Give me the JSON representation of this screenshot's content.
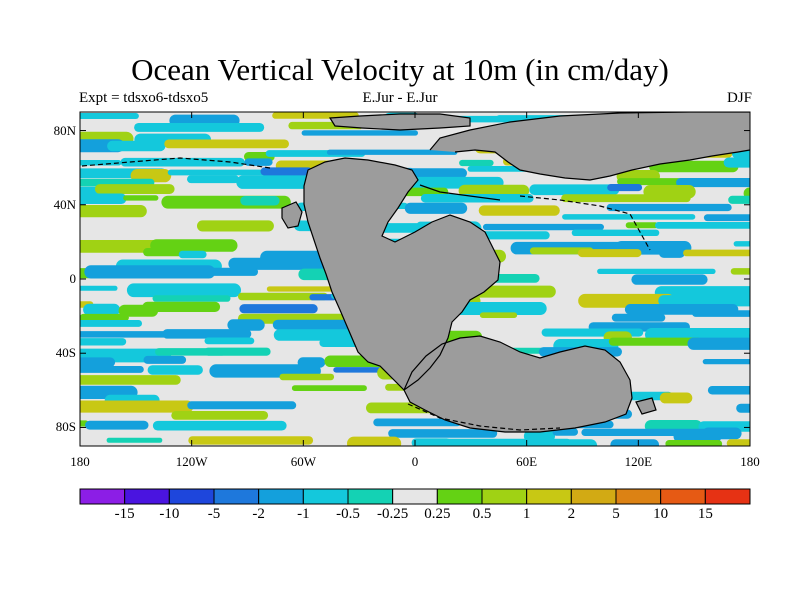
{
  "title": "Ocean Vertical Velocity at 10m (in cm/day)",
  "subtitle_left": "Expt = tdsxo6-tdsxo5",
  "subtitle_center": "E.Jur - E.Jur",
  "subtitle_right": "DJF",
  "map": {
    "ocean_base_color": "#e6e6e6",
    "land_color": "#9c9c9c",
    "lon_range": [
      -180,
      180
    ],
    "lat_range": [
      -90,
      90
    ],
    "lat_ticks": [
      {
        "label": "80N",
        "lat": 80
      },
      {
        "label": "40N",
        "lat": 40
      },
      {
        "label": "0",
        "lat": 0
      },
      {
        "label": "40S",
        "lat": -40
      },
      {
        "label": "80S",
        "lat": -80
      }
    ],
    "lon_ticks": [
      {
        "label": "180",
        "lon": -180
      },
      {
        "label": "120W",
        "lon": -120
      },
      {
        "label": "60W",
        "lon": -60
      },
      {
        "label": "0",
        "lon": 0
      },
      {
        "label": "60E",
        "lon": 60
      },
      {
        "label": "120E",
        "lon": 120
      },
      {
        "label": "180",
        "lon": 180
      }
    ]
  },
  "colorbar": {
    "colors": [
      "#8c1ee6",
      "#4a14e0",
      "#1e46dc",
      "#1e78dc",
      "#14a0dc",
      "#14c8dc",
      "#14d2b4",
      "#e6e6e6",
      "#64d214",
      "#a0d214",
      "#c8c814",
      "#d2aa14",
      "#dc8214",
      "#e65a14",
      "#e63214"
    ],
    "labels": [
      "-15",
      "-10",
      "-5",
      "-2",
      "-1",
      "-0.5",
      "-0.25",
      "0.25",
      "0.5",
      "1",
      "2",
      "5",
      "10",
      "15"
    ]
  }
}
